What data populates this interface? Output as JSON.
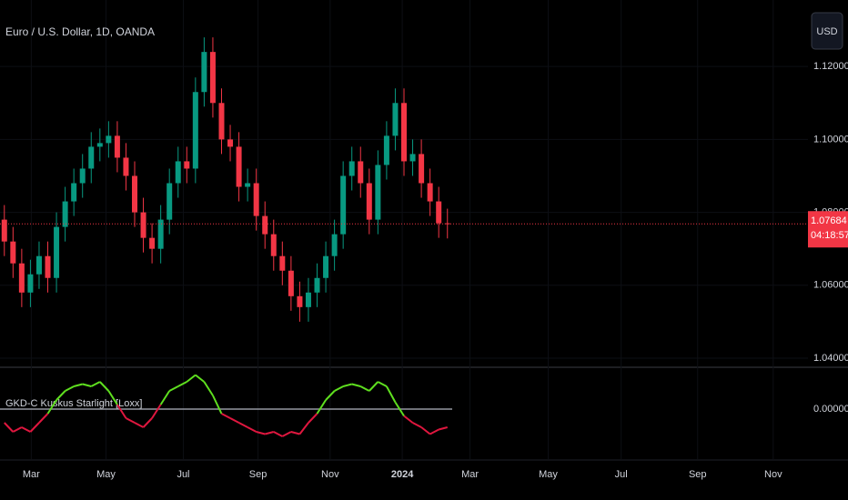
{
  "chart_data": [
    {
      "type": "candlestick",
      "title": "Euro / U.S. Dollar, 1D, OANDA",
      "currency": "USD",
      "open": [
        1.078,
        1.072,
        1.066,
        1.058,
        1.063,
        1.068,
        1.062,
        1.076,
        1.083,
        1.088,
        1.092,
        1.098,
        1.099,
        1.101,
        1.095,
        1.09,
        1.08,
        1.073,
        1.07,
        1.078,
        1.088,
        1.094,
        1.092,
        1.113,
        1.124,
        1.11,
        1.1,
        1.098,
        1.087,
        1.088,
        1.079,
        1.074,
        1.068,
        1.064,
        1.057,
        1.054,
        1.058,
        1.062,
        1.068,
        1.074,
        1.09,
        1.094,
        1.088,
        1.078,
        1.093,
        1.101,
        1.11,
        1.094,
        1.096,
        1.088,
        1.083,
        1.077
      ],
      "high": [
        1.082,
        1.076,
        1.07,
        1.067,
        1.072,
        1.072,
        1.08,
        1.087,
        1.092,
        1.096,
        1.102,
        1.103,
        1.105,
        1.105,
        1.099,
        1.094,
        1.084,
        1.077,
        1.082,
        1.092,
        1.098,
        1.098,
        1.117,
        1.128,
        1.128,
        1.114,
        1.104,
        1.102,
        1.092,
        1.092,
        1.083,
        1.078,
        1.072,
        1.068,
        1.061,
        1.062,
        1.066,
        1.072,
        1.078,
        1.094,
        1.098,
        1.098,
        1.092,
        1.097,
        1.105,
        1.114,
        1.114,
        1.1,
        1.1,
        1.092,
        1.087,
        1.081
      ],
      "low": [
        1.068,
        1.062,
        1.054,
        1.054,
        1.059,
        1.058,
        1.058,
        1.072,
        1.079,
        1.084,
        1.088,
        1.094,
        1.095,
        1.091,
        1.086,
        1.076,
        1.069,
        1.066,
        1.066,
        1.074,
        1.084,
        1.088,
        1.088,
        1.109,
        1.106,
        1.096,
        1.094,
        1.083,
        1.083,
        1.075,
        1.07,
        1.064,
        1.06,
        1.053,
        1.05,
        1.05,
        1.054,
        1.058,
        1.064,
        1.07,
        1.086,
        1.084,
        1.074,
        1.074,
        1.089,
        1.097,
        1.09,
        1.09,
        1.084,
        1.079,
        1.073,
        1.07284
      ],
      "close": [
        1.072,
        1.066,
        1.058,
        1.063,
        1.068,
        1.062,
        1.076,
        1.083,
        1.088,
        1.092,
        1.098,
        1.099,
        1.101,
        1.095,
        1.09,
        1.08,
        1.073,
        1.07,
        1.078,
        1.088,
        1.094,
        1.092,
        1.113,
        1.124,
        1.11,
        1.1,
        1.098,
        1.087,
        1.088,
        1.079,
        1.074,
        1.068,
        1.064,
        1.057,
        1.054,
        1.058,
        1.062,
        1.068,
        1.074,
        1.09,
        1.094,
        1.088,
        1.078,
        1.093,
        1.101,
        1.11,
        1.094,
        1.096,
        1.088,
        1.083,
        1.077,
        1.07684
      ],
      "up_color": "#089981",
      "down_color": "#f23645",
      "last_price": 1.07684,
      "countdown": "04:18:57",
      "ylim": [
        1.0375,
        1.13825
      ],
      "yticks": [
        {
          "value": 1.12,
          "label": "1.12000"
        },
        {
          "value": 1.1,
          "label": "1.10000"
        },
        {
          "value": 1.08,
          "label": "1.08000"
        },
        {
          "value": 1.06,
          "label": "1.06000"
        },
        {
          "value": 1.04,
          "label": "1.04000"
        }
      ],
      "xlim": [
        -0.5,
        92.5
      ],
      "xticks": [
        {
          "value": 3.1,
          "label": "Mar"
        },
        {
          "value": 11.7,
          "label": "May"
        },
        {
          "value": 20.6,
          "label": "Jul"
        },
        {
          "value": 29.2,
          "label": "Sep"
        },
        {
          "value": 37.5,
          "label": "Nov"
        },
        {
          "value": 45.8,
          "label": "2024"
        },
        {
          "value": 53.6,
          "label": "Mar"
        },
        {
          "value": 62.6,
          "label": "May"
        },
        {
          "value": 71,
          "label": "Jul"
        },
        {
          "value": 79.8,
          "label": "Sep"
        },
        {
          "value": 88.5,
          "label": "Nov"
        }
      ]
    },
    {
      "type": "line",
      "title": "GKD-C Kuskus Starlight [Loxx]",
      "values": [
        -0.3,
        -0.5,
        -0.4,
        -0.5,
        -0.3,
        -0.1,
        0.2,
        0.4,
        0.5,
        0.55,
        0.5,
        0.6,
        0.4,
        0.1,
        -0.2,
        -0.3,
        -0.4,
        -0.2,
        0.1,
        0.4,
        0.5,
        0.6,
        0.75,
        0.6,
        0.3,
        -0.1,
        -0.2,
        -0.3,
        -0.4,
        -0.5,
        -0.55,
        -0.5,
        -0.6,
        -0.5,
        -0.55,
        -0.3,
        -0.1,
        0.2,
        0.4,
        0.5,
        0.55,
        0.5,
        0.4,
        0.6,
        0.5,
        0.15,
        -0.15,
        -0.3,
        -0.4,
        -0.55,
        -0.45,
        -0.4
      ],
      "up_color": "#5fe01f",
      "down_color": "#e0173f",
      "ylim": [
        -1.1,
        0.9
      ],
      "yticks": [
        {
          "value": 0,
          "label": "0.00000"
        }
      ]
    }
  ]
}
